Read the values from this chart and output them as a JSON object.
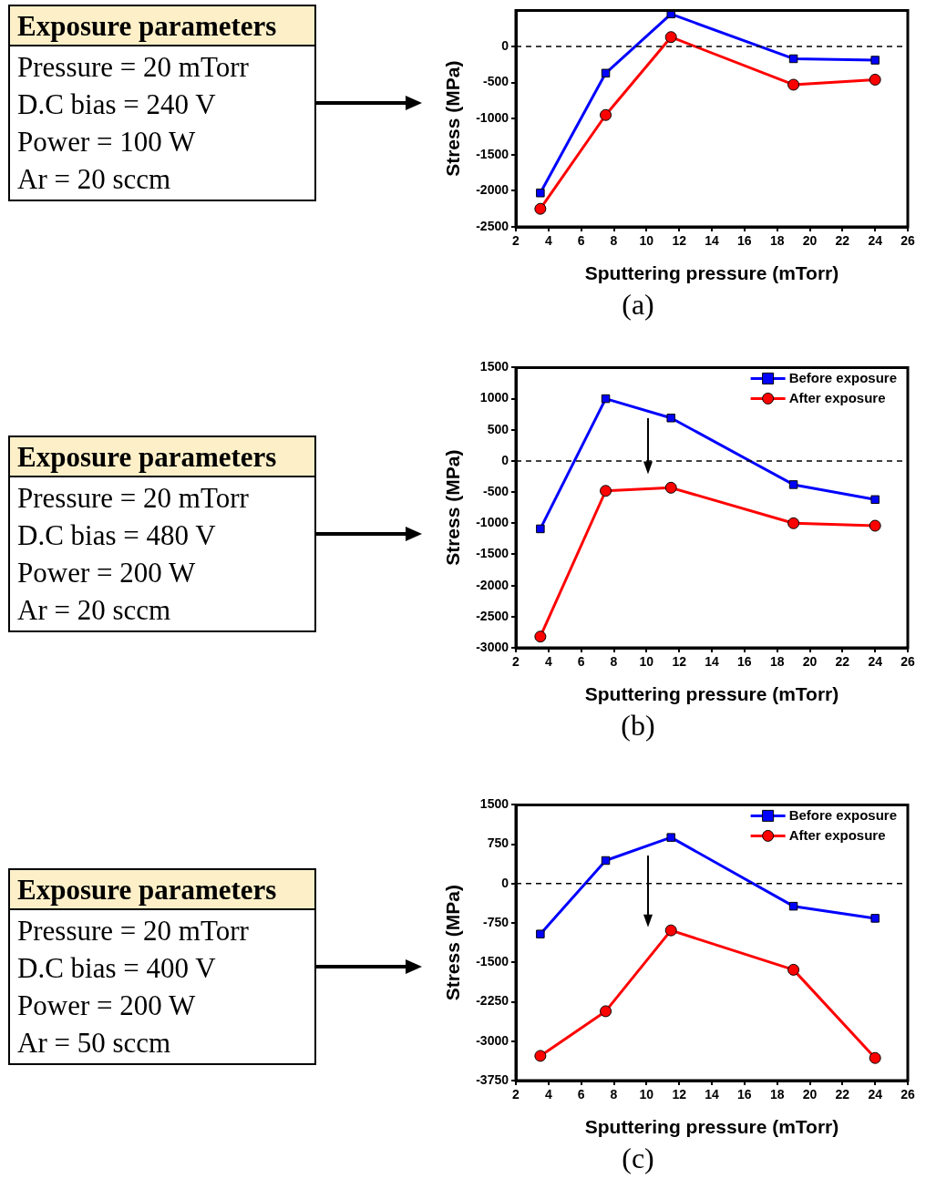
{
  "chart_data": [
    {
      "type": "other",
      "title": "Exposure parameters",
      "annotations": [
        "Pressure = 20 mTorr",
        "D.C bias = 240 V",
        "Power = 100 W",
        "Ar = 20 sccm"
      ]
    },
    {
      "type": "line",
      "xlabel": "Sputtering pressure (mTorr)",
      "ylabel": "Stress (MPa)",
      "x": [
        3.5,
        7.5,
        11.5,
        19,
        24
      ],
      "xlim": [
        2,
        26
      ],
      "xticks": [
        2,
        4,
        6,
        8,
        10,
        12,
        14,
        16,
        18,
        20,
        22,
        24,
        26
      ],
      "ylim": [
        -2500,
        500
      ],
      "yticks": [
        -2500,
        -2000,
        -1500,
        -1000,
        -500,
        0
      ],
      "series": [
        {
          "color": "#0000ff",
          "marker": "square",
          "values": [
            -2030,
            -370,
            450,
            -170,
            -190
          ]
        },
        {
          "color": "#ff0000",
          "marker": "circle",
          "values": [
            -2250,
            -950,
            130,
            -530,
            -460
          ]
        }
      ],
      "ref_lines": [
        {
          "axis": "y",
          "value": 0,
          "color": "#000000",
          "line_style": "dashed"
        }
      ],
      "annotations": [
        "(a)"
      ]
    },
    {
      "type": "other",
      "title": "Exposure parameters",
      "annotations": [
        "Pressure = 20 mTorr",
        "D.C bias = 480 V",
        "Power = 200 W",
        "Ar = 20 sccm"
      ]
    },
    {
      "type": "line",
      "xlabel": "Sputtering pressure (mTorr)",
      "ylabel": "Stress (MPa)",
      "x": [
        3.5,
        7.5,
        11.5,
        19,
        24
      ],
      "xlim": [
        2,
        26
      ],
      "xticks": [
        2,
        4,
        6,
        8,
        10,
        12,
        14,
        16,
        18,
        20,
        22,
        24,
        26
      ],
      "ylim": [
        -3000,
        1500
      ],
      "yticks": [
        -3000,
        -2500,
        -2000,
        -1500,
        -1000,
        -500,
        0,
        500,
        1000,
        1500
      ],
      "series": [
        {
          "name": "Before exposure",
          "color": "#0000ff",
          "marker": "square",
          "values": [
            -1090,
            1000,
            690,
            -380,
            -620
          ]
        },
        {
          "name": "After exposure",
          "color": "#ff0000",
          "marker": "circle",
          "values": [
            -2820,
            -480,
            -430,
            -1000,
            -1040
          ]
        }
      ],
      "ref_lines": [
        {
          "axis": "y",
          "value": 0,
          "color": "#000000",
          "line_style": "dashed"
        }
      ],
      "legend": "top right",
      "annotations": [
        "(b)"
      ]
    },
    {
      "type": "other",
      "title": "Exposure parameters",
      "annotations": [
        "Pressure = 20 mTorr",
        "D.C bias = 400 V",
        "Power = 200 W",
        "Ar = 50 sccm"
      ]
    },
    {
      "type": "line",
      "xlabel": "Sputtering pressure (mTorr)",
      "ylabel": "Stress (MPa)",
      "x": [
        3.5,
        7.5,
        11.5,
        19,
        24
      ],
      "xlim": [
        2,
        26
      ],
      "xticks": [
        2,
        4,
        6,
        8,
        10,
        12,
        14,
        16,
        18,
        20,
        22,
        24,
        26
      ],
      "ylim": [
        -3750,
        1500
      ],
      "yticks": [
        -3750,
        -3000,
        -2250,
        -1500,
        -750,
        0,
        750,
        1500
      ],
      "series": [
        {
          "name": "Before exposure",
          "color": "#0000ff",
          "marker": "square",
          "values": [
            -960,
            440,
            880,
            -430,
            -660
          ]
        },
        {
          "name": "After exposure",
          "color": "#ff0000",
          "marker": "circle",
          "values": [
            -3280,
            -2430,
            -890,
            -1640,
            -3320
          ]
        }
      ],
      "ref_lines": [
        {
          "axis": "y",
          "value": 0,
          "color": "#000000",
          "line_style": "dashed"
        }
      ],
      "legend": "top right",
      "annotations": [
        "(c)"
      ]
    }
  ]
}
